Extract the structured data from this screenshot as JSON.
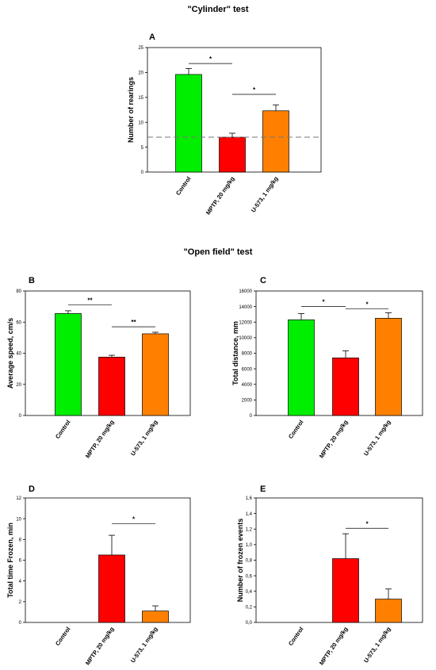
{
  "section_titles": [
    "\"Cylinder\" test",
    "\"Open field\" test"
  ],
  "colors": {
    "control": "#00ee00",
    "mptp": "#ff0000",
    "u573": "#ff8000"
  },
  "chart_data": [
    {
      "type": "bar",
      "panel_label": "A",
      "categories": [
        "Control",
        "MPTP, 20 mg/kg",
        "U-573, 1 mg/kg"
      ],
      "values": [
        19.6,
        7.0,
        12.3
      ],
      "errors": [
        1.2,
        0.8,
        1.2
      ],
      "ylabel": "Number of rearings",
      "xlabel": "",
      "ylim": [
        0,
        25
      ],
      "yticks": [
        "0",
        "5",
        "10",
        "15",
        "20",
        "25"
      ],
      "reference_line": 7.0,
      "significance": [
        {
          "from": 0,
          "to": 1,
          "label": "*",
          "y": 21.8
        },
        {
          "from": 1,
          "to": 2,
          "label": "*",
          "y": 15.6
        }
      ]
    },
    {
      "type": "bar",
      "panel_label": "B",
      "categories": [
        "Control",
        "MPTP, 20 mg/kg",
        "U-573, 1 mg/kg"
      ],
      "values": [
        65.5,
        37.5,
        52.5
      ],
      "errors": [
        1.8,
        1.2,
        1.0
      ],
      "ylabel": "Average speed, cm/s",
      "xlabel": "",
      "ylim": [
        0,
        80
      ],
      "yticks": [
        "0",
        "20",
        "40",
        "60",
        "80"
      ],
      "significance": [
        {
          "from": 0,
          "to": 1,
          "label": "**",
          "y": 71
        },
        {
          "from": 1,
          "to": 2,
          "label": "**",
          "y": 57
        }
      ]
    },
    {
      "type": "bar",
      "panel_label": "C",
      "categories": [
        "Control",
        "MPTP, 20 mg/kg",
        "U-573, 1 mg/kg"
      ],
      "values": [
        12300,
        7400,
        12500
      ],
      "errors": [
        800,
        900,
        700
      ],
      "ylabel": "Total distance, mm",
      "xlabel": "",
      "ylim": [
        0,
        16000
      ],
      "yticks": [
        "0",
        "2000",
        "4000",
        "6000",
        "8000",
        "10000",
        "12000",
        "14000",
        "16000"
      ],
      "significance": [
        {
          "from": 0,
          "to": 1,
          "label": "*",
          "y": 14000
        },
        {
          "from": 1,
          "to": 2,
          "label": "*",
          "y": 13700
        }
      ]
    },
    {
      "type": "bar",
      "panel_label": "D",
      "categories": [
        "Control",
        "MPTP, 20 mg/kg",
        "U-573, 1 mg/kg"
      ],
      "values": [
        0,
        6.5,
        1.1
      ],
      "errors": [
        0,
        1.9,
        0.5
      ],
      "ylabel": "Total time Frozen, min",
      "xlabel": "",
      "ylim": [
        0,
        12
      ],
      "yticks": [
        "0",
        "2",
        "4",
        "6",
        "8",
        "10",
        "12"
      ],
      "significance": [
        {
          "from": 1,
          "to": 2,
          "label": "*",
          "y": 9.5
        }
      ]
    },
    {
      "type": "bar",
      "panel_label": "E",
      "categories": [
        "Control",
        "MPTP, 20 mg/kg",
        "U-573, 1 mg/kg"
      ],
      "values": [
        0,
        0.82,
        0.3
      ],
      "errors": [
        0,
        0.32,
        0.13
      ],
      "ylabel": "Number of frozen events",
      "xlabel": "",
      "ylim": [
        0,
        1.6
      ],
      "yticks": [
        "0,0",
        "0,2",
        "0,4",
        "0,6",
        "0,8",
        "1,0",
        "1,2",
        "1,4",
        "1,6"
      ],
      "significance": [
        {
          "from": 1,
          "to": 2,
          "label": "*",
          "y": 1.21
        }
      ]
    }
  ]
}
